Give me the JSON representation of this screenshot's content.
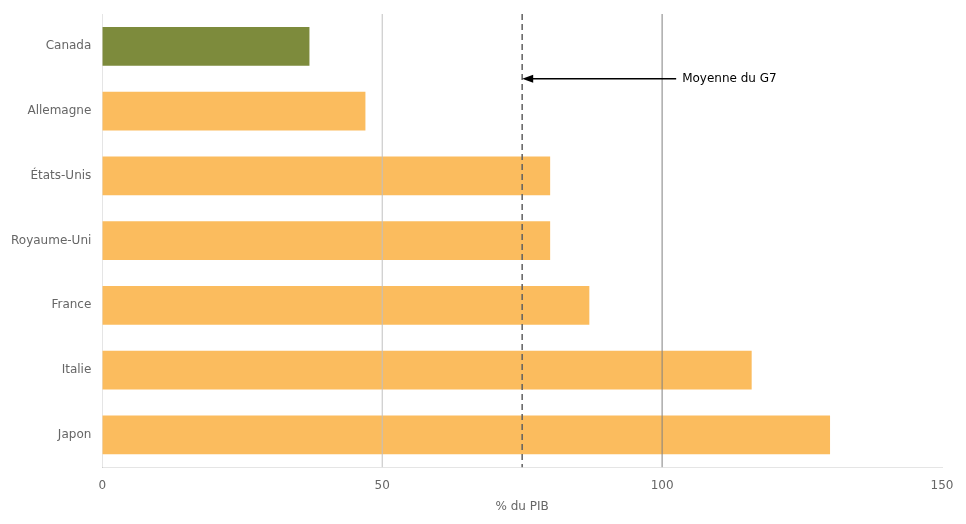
{
  "chart_data": {
    "type": "bar",
    "orientation": "horizontal",
    "categories": [
      "Japon",
      "Italie",
      "France",
      "Royaume-Uni",
      "États-Unis",
      "Allemagne",
      "Canada"
    ],
    "values": [
      130,
      116,
      87,
      80,
      80,
      47,
      37
    ],
    "colors": [
      "#FBBC5E",
      "#FBBC5E",
      "#FBBC5E",
      "#FBBC5E",
      "#FBBC5E",
      "#FBBC5E",
      "#7D8B3C"
    ],
    "xlim": [
      0,
      150
    ],
    "xticks": [
      0,
      50,
      100,
      150
    ],
    "xlabel": "% du PIB",
    "grid": false,
    "reference_lines": [
      {
        "x": 75,
        "color": "#606060",
        "line_style": "dashed"
      },
      {
        "x": 100,
        "color": "#808080",
        "line_style": "solid"
      },
      {
        "x": 50,
        "color": "#C0C0C0",
        "line_style": "solid"
      }
    ],
    "annotations": [
      {
        "text": "Moyenne du G7",
        "x": 75
      }
    ]
  }
}
